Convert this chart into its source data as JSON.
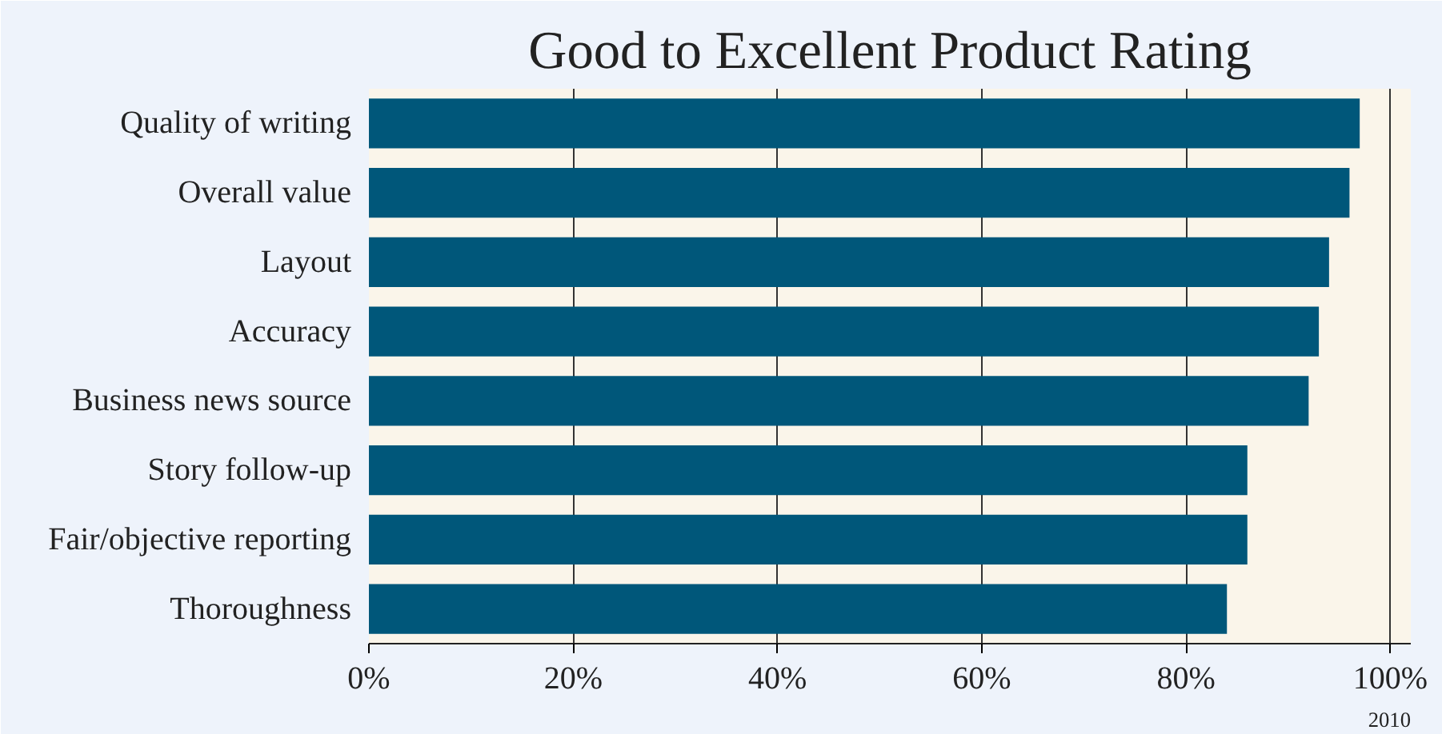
{
  "chart_data": {
    "type": "bar",
    "orientation": "horizontal",
    "title": "Good to Excellent Product Rating",
    "categories": [
      "Quality of writing",
      "Overall value",
      "Layout",
      "Accuracy",
      "Business news source",
      "Story follow-up",
      "Fair/objective reporting",
      "Thoroughness"
    ],
    "values": [
      97,
      96,
      94,
      93,
      92,
      86,
      86,
      84
    ],
    "color": "#00577a",
    "xlim": [
      0,
      102
    ],
    "xticks": [
      {
        "value": 0,
        "label": "0%"
      },
      {
        "value": 20,
        "label": "20%"
      },
      {
        "value": 40,
        "label": "40%"
      },
      {
        "value": 60,
        "label": "60%"
      },
      {
        "value": 80,
        "label": "80%"
      },
      {
        "value": 100,
        "label": "100%"
      }
    ],
    "grid": "x",
    "annotations": [
      "2010"
    ]
  }
}
